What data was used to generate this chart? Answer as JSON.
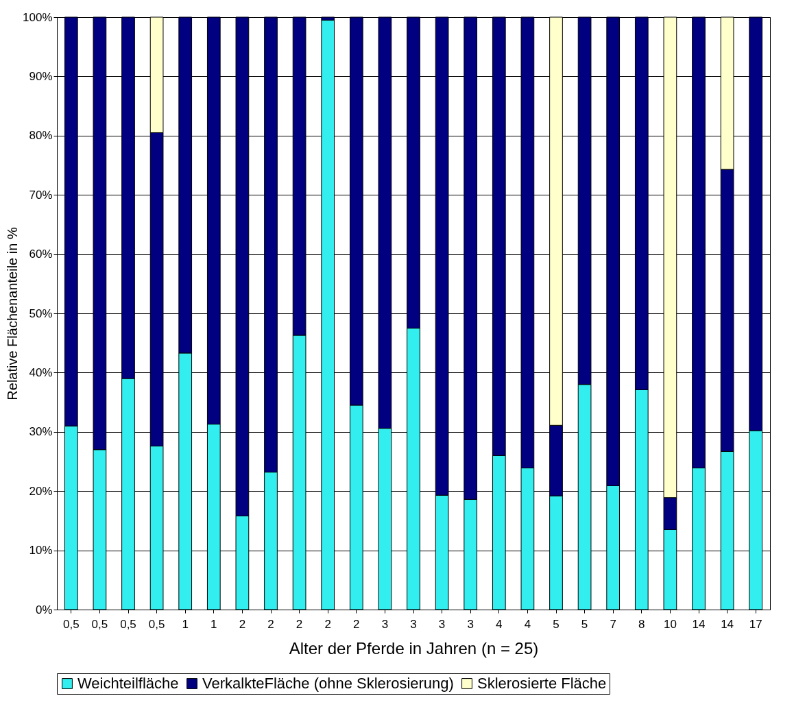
{
  "chart_data": {
    "type": "bar",
    "stacked": true,
    "xlabel": "Alter der Pferde in Jahren (n = 25)",
    "ylabel": "Relative Flächenanteile in %",
    "categories": [
      "0,5",
      "0,5",
      "0,5",
      "0,5",
      "1",
      "1",
      "2",
      "2",
      "2",
      "2",
      "2",
      "3",
      "3",
      "3",
      "3",
      "4",
      "4",
      "5",
      "5",
      "7",
      "8",
      "10",
      "14",
      "14",
      "17"
    ],
    "series": [
      {
        "name": "Weichteilfläche",
        "color": "#33eeee",
        "values": [
          31,
          27,
          39,
          27.6,
          43.3,
          31.3,
          15.8,
          23.2,
          46.3,
          99.5,
          34.5,
          30.6,
          47.5,
          19.3,
          18.6,
          26,
          23.9,
          19.2,
          38,
          20.9,
          37.1,
          13.5,
          23.9,
          26.7,
          30.2
        ]
      },
      {
        "name": "VerkalkteFläche (ohne Sklerosierung)",
        "color": "#000080",
        "values": [
          69,
          73,
          61,
          52.9,
          56.7,
          68.7,
          84.2,
          76.8,
          53.7,
          0.5,
          65.5,
          69.4,
          52.5,
          80.7,
          81.4,
          74,
          76.1,
          11.9,
          62,
          79.1,
          62.9,
          5.4,
          76.1,
          47.6,
          69.8
        ]
      },
      {
        "name": "Sklerosierte Fläche",
        "color": "#ffffcc",
        "values": [
          null,
          null,
          null,
          19.5,
          null,
          null,
          null,
          null,
          null,
          null,
          null,
          null,
          null,
          null,
          null,
          null,
          null,
          68.9,
          null,
          null,
          null,
          81.1,
          null,
          25.7,
          null
        ]
      }
    ],
    "ylim": [
      0,
      100
    ],
    "yticks": [
      {
        "value": 0,
        "label": "0%"
      },
      {
        "value": 10,
        "label": "10%"
      },
      {
        "value": 20,
        "label": "20%"
      },
      {
        "value": 30,
        "label": "30%"
      },
      {
        "value": 40,
        "label": "40%"
      },
      {
        "value": 50,
        "label": "50%"
      },
      {
        "value": 60,
        "label": "60%"
      },
      {
        "value": 70,
        "label": "70%"
      },
      {
        "value": 80,
        "label": "80%"
      },
      {
        "value": 90,
        "label": "90%"
      },
      {
        "value": 100,
        "label": "100%"
      }
    ],
    "grid": "y",
    "legend": "bottom"
  }
}
